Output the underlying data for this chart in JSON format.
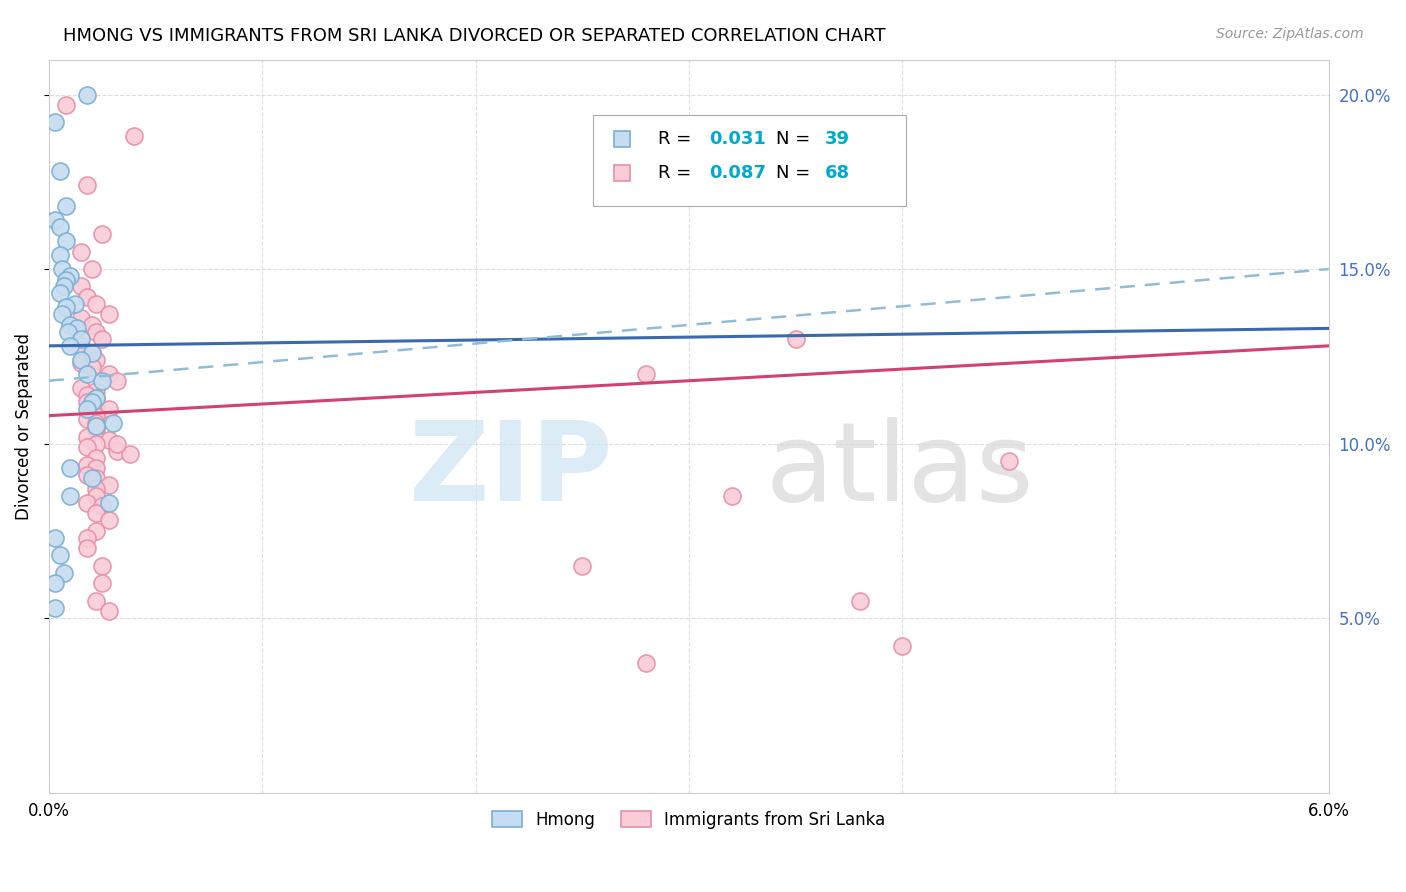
{
  "title": "HMONG VS IMMIGRANTS FROM SRI LANKA DIVORCED OR SEPARATED CORRELATION CHART",
  "source": "Source: ZipAtlas.com",
  "ylabel": "Divorced or Separated",
  "xlim": [
    0.0,
    0.06
  ],
  "ylim": [
    0.0,
    0.21
  ],
  "xtick_vals": [
    0.0,
    0.01,
    0.02,
    0.03,
    0.04,
    0.05,
    0.06
  ],
  "xtick_labels": [
    "0.0%",
    "",
    "",
    "",
    "",
    "",
    "6.0%"
  ],
  "yticks_right": [
    0.05,
    0.1,
    0.15,
    0.2
  ],
  "ytick_labels_right": [
    "5.0%",
    "10.0%",
    "15.0%",
    "20.0%"
  ],
  "right_tick_color": "#4472c4",
  "legend_r1_val": "0.031",
  "legend_n1_val": "39",
  "legend_r2_val": "0.087",
  "legend_n2_val": "68",
  "blue_fill": "#c6dcf0",
  "blue_edge": "#7ab0d4",
  "pink_fill": "#f9ccd8",
  "pink_edge": "#e890a8",
  "blue_line_color": "#3a6aad",
  "pink_line_color": "#d44070",
  "blue_dashed_color": "#90bcd8",
  "legend_r_color": "#00aacc",
  "legend_n_color": "#00aacc",
  "watermark_zip_color": "#cce4f4",
  "watermark_atlas_color": "#d8d8d8",
  "grid_color": "#dddddd",
  "hmong_x": [
    0.0003,
    0.0018,
    0.0005,
    0.0008,
    0.0003,
    0.0005,
    0.0008,
    0.0005,
    0.0006,
    0.001,
    0.0008,
    0.0007,
    0.0005,
    0.0012,
    0.0008,
    0.0006,
    0.001,
    0.0013,
    0.0009,
    0.0015,
    0.001,
    0.002,
    0.0015,
    0.0018,
    0.0025,
    0.0022,
    0.002,
    0.0018,
    0.003,
    0.0022,
    0.001,
    0.002,
    0.001,
    0.0028,
    0.0003,
    0.0005,
    0.0007,
    0.0003,
    0.0003
  ],
  "hmong_y": [
    0.192,
    0.2,
    0.178,
    0.168,
    0.164,
    0.162,
    0.158,
    0.154,
    0.15,
    0.148,
    0.147,
    0.145,
    0.143,
    0.14,
    0.139,
    0.137,
    0.134,
    0.133,
    0.132,
    0.13,
    0.128,
    0.126,
    0.124,
    0.12,
    0.118,
    0.113,
    0.112,
    0.11,
    0.106,
    0.105,
    0.093,
    0.09,
    0.085,
    0.083,
    0.073,
    0.068,
    0.063,
    0.06,
    0.053
  ],
  "sri_x": [
    0.0008,
    0.004,
    0.0018,
    0.0025,
    0.0015,
    0.002,
    0.0015,
    0.0018,
    0.0022,
    0.0028,
    0.0015,
    0.002,
    0.0022,
    0.0025,
    0.0015,
    0.002,
    0.0022,
    0.0015,
    0.002,
    0.0028,
    0.0032,
    0.0015,
    0.0022,
    0.0018,
    0.0022,
    0.0018,
    0.0022,
    0.0028,
    0.0022,
    0.0018,
    0.0022,
    0.0022,
    0.0018,
    0.0028,
    0.0022,
    0.0018,
    0.0032,
    0.0038,
    0.035,
    0.0022,
    0.0018,
    0.0022,
    0.0018,
    0.0022,
    0.0028,
    0.0022,
    0.0022,
    0.0018,
    0.0025,
    0.0022,
    0.0032,
    0.0022,
    0.0028,
    0.0022,
    0.0018,
    0.0018,
    0.0025,
    0.0025,
    0.0022,
    0.0028,
    0.035,
    0.028,
    0.04,
    0.045,
    0.028,
    0.032,
    0.038,
    0.025
  ],
  "sri_y": [
    0.197,
    0.188,
    0.174,
    0.16,
    0.155,
    0.15,
    0.145,
    0.142,
    0.14,
    0.137,
    0.136,
    0.134,
    0.132,
    0.13,
    0.128,
    0.126,
    0.124,
    0.123,
    0.122,
    0.12,
    0.118,
    0.116,
    0.115,
    0.114,
    0.113,
    0.112,
    0.11,
    0.11,
    0.108,
    0.107,
    0.106,
    0.104,
    0.102,
    0.101,
    0.1,
    0.099,
    0.098,
    0.097,
    0.175,
    0.096,
    0.094,
    0.093,
    0.091,
    0.09,
    0.088,
    0.087,
    0.085,
    0.083,
    0.082,
    0.08,
    0.1,
    0.105,
    0.078,
    0.075,
    0.073,
    0.07,
    0.065,
    0.06,
    0.055,
    0.052,
    0.13,
    0.12,
    0.042,
    0.095,
    0.037,
    0.085,
    0.055,
    0.065
  ],
  "blue_line_x0": 0.0,
  "blue_line_x1": 0.06,
  "blue_line_y0": 0.128,
  "blue_line_y1": 0.133,
  "dashed_line_y0": 0.118,
  "dashed_line_y1": 0.15,
  "pink_line_y0": 0.108,
  "pink_line_y1": 0.128
}
